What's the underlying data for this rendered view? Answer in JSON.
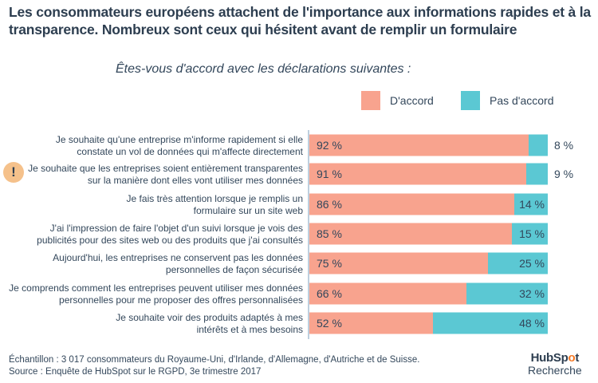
{
  "header": {
    "title": "Les consommateurs européens attachent de l'importance aux informations rapides et à la transparence. Nombreux sont ceux qui hésitent avant de remplir un formulaire",
    "subtitle": "Êtes-vous d'accord avec les déclarations suivantes :"
  },
  "colors": {
    "agree": "#f8a38e",
    "disagree": "#5bc8d3",
    "text": "#33475b",
    "alert": "#f5c18b"
  },
  "alert_icon": "!",
  "chart_data": {
    "type": "bar",
    "orientation": "horizontal",
    "stacked": true,
    "title": "Êtes-vous d'accord avec les déclarations suivantes :",
    "xlabel": "",
    "ylabel": "",
    "xlim": [
      0,
      100
    ],
    "legend": {
      "position": "top-right",
      "entries": [
        "D'accord",
        "Pas d'accord"
      ]
    },
    "categories": [
      [
        "Je souhaite qu'une entreprise m'informe rapidement si elle",
        "constate un vol de données qui m'affecte directement"
      ],
      [
        "Je souhaite que les entreprises soient entièrement transparentes",
        "sur la manière dont elles vont utiliser mes données"
      ],
      [
        "Je fais très attention lorsque je remplis un",
        "formulaire sur un site web"
      ],
      [
        "J'ai l'impression de faire l'objet d'un suivi lorsque je vois des",
        "publicités pour des sites web ou des produits que j'ai consultés"
      ],
      [
        "Aujourd'hui, les entreprises ne conservent pas les données",
        "personnelles de façon sécurisée"
      ],
      [
        "Je comprends comment les entreprises peuvent utiliser mes données",
        "personnelles pour me proposer des offres personnalisées"
      ],
      [
        "Je souhaite voir des produits adaptés à mes",
        "intérêts et à mes besoins"
      ]
    ],
    "series": [
      {
        "name": "D'accord",
        "values": [
          92,
          91,
          86,
          85,
          75,
          66,
          52
        ],
        "labels": [
          "92 %",
          "91 %",
          "86 %",
          "85 %",
          "75 %",
          "66 %",
          "52 %"
        ]
      },
      {
        "name": "Pas d'accord",
        "values": [
          8,
          9,
          14,
          15,
          25,
          32,
          48
        ],
        "labels": [
          "8 %",
          "9 %",
          "14 %",
          "15 %",
          "25 %",
          "32 %",
          "48 %"
        ]
      }
    ]
  },
  "footer": {
    "sample": "Échantillon : 3 017 consommateurs du Royaume-Uni, d'Irlande, d'Allemagne, d'Autriche et de Suisse.",
    "source": "Source : Enquête de HubSpot sur le RGPD, 3e trimestre 2017",
    "logo_prefix": "HubSp",
    "logo_o": "o",
    "logo_suffix": "t",
    "logo_sub": "Recherche"
  }
}
